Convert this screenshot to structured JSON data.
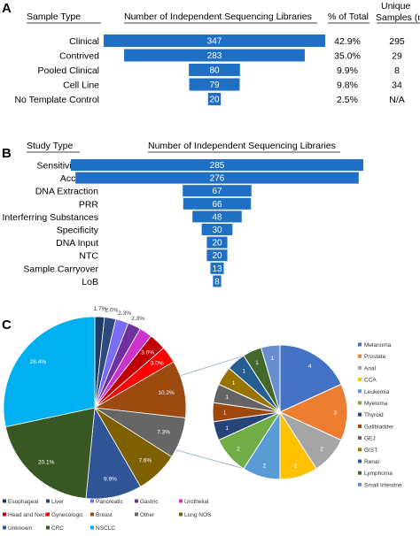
{
  "chart_data": [
    {
      "panel": "A",
      "type": "bar",
      "headers": {
        "category": "Sample Type",
        "value": "Number of Independent Sequencing Libraries",
        "percent": "% of Total",
        "unique": "Unique Samples (n)"
      },
      "categories": [
        "Clinical",
        "Contrived",
        "Pooled Clinical",
        "Cell Line",
        "No Template Control"
      ],
      "values": [
        347,
        283,
        80,
        79,
        20
      ],
      "percent_of_total": [
        "42.9%",
        "35.0%",
        "9.9%",
        "9.8%",
        "2.5%"
      ],
      "unique_samples": [
        "295",
        "29",
        "8",
        "34",
        "N/A"
      ],
      "bar_color": "#1f6fc5"
    },
    {
      "panel": "B",
      "type": "bar",
      "headers": {
        "category": "Study Type",
        "value": "Number of Independent Sequencing Libraries"
      },
      "categories": [
        "Sensitivity/LoD",
        "Accuracy",
        "DNA Extraction",
        "PRR",
        "Interferring Substances",
        "Specificity",
        "DNA Input",
        "NTC",
        "Sample Carryover",
        "LoB"
      ],
      "values": [
        285,
        276,
        67,
        66,
        48,
        30,
        20,
        20,
        13,
        8
      ],
      "bar_color": "#1f6fc5"
    },
    {
      "panel": "C",
      "type": "pie",
      "labels": [
        "Esophageal",
        "Liver",
        "Pancreatic",
        "Gastric",
        "Urothelial",
        "Head and Neck",
        "Gynecologic",
        "Breast",
        "Other",
        "Lung NOS",
        "Unknown",
        "CRC",
        "NSCLC"
      ],
      "values": [
        1.7,
        2.0,
        2.3,
        2.3,
        2.3,
        3.0,
        3.0,
        10.2,
        7.3,
        7.6,
        9.9,
        20.1,
        28.4
      ],
      "display_labels": [
        "1.7%",
        "2.0%",
        "2.3%",
        "2.3%",
        "",
        "3.0%",
        "3.0%",
        "10.2%",
        "7.3%",
        "7.6%",
        "9.9%",
        "20.1%",
        "28.4%"
      ],
      "colors": [
        "#203864",
        "#2e4a7d",
        "#7b6cf6",
        "#7030a0",
        "#cc33cc",
        "#c00000",
        "#ff0000",
        "#9c4a10",
        "#666666",
        "#7f6000",
        "#2f5597",
        "#385723",
        "#00b0f0"
      ]
    },
    {
      "panel": "C-detail",
      "type": "pie",
      "labels": [
        "Melanoma",
        "Prostate",
        "Anal",
        "CCA",
        "Leukemia",
        "Myeloma",
        "Thyroid",
        "Gallbladder",
        "GEJ",
        "GIST",
        "Renal",
        "Lymphoma",
        "Small Intestine"
      ],
      "values": [
        4,
        3,
        2,
        2,
        2,
        2,
        1,
        1,
        1,
        1,
        1,
        1,
        1
      ],
      "colors": [
        "#4472c4",
        "#ed7d31",
        "#a5a5a5",
        "#ffc000",
        "#5b9bd5",
        "#70ad47",
        "#264478",
        "#9e480e",
        "#636363",
        "#997300",
        "#255e91",
        "#43682b",
        "#698ed0"
      ]
    }
  ]
}
